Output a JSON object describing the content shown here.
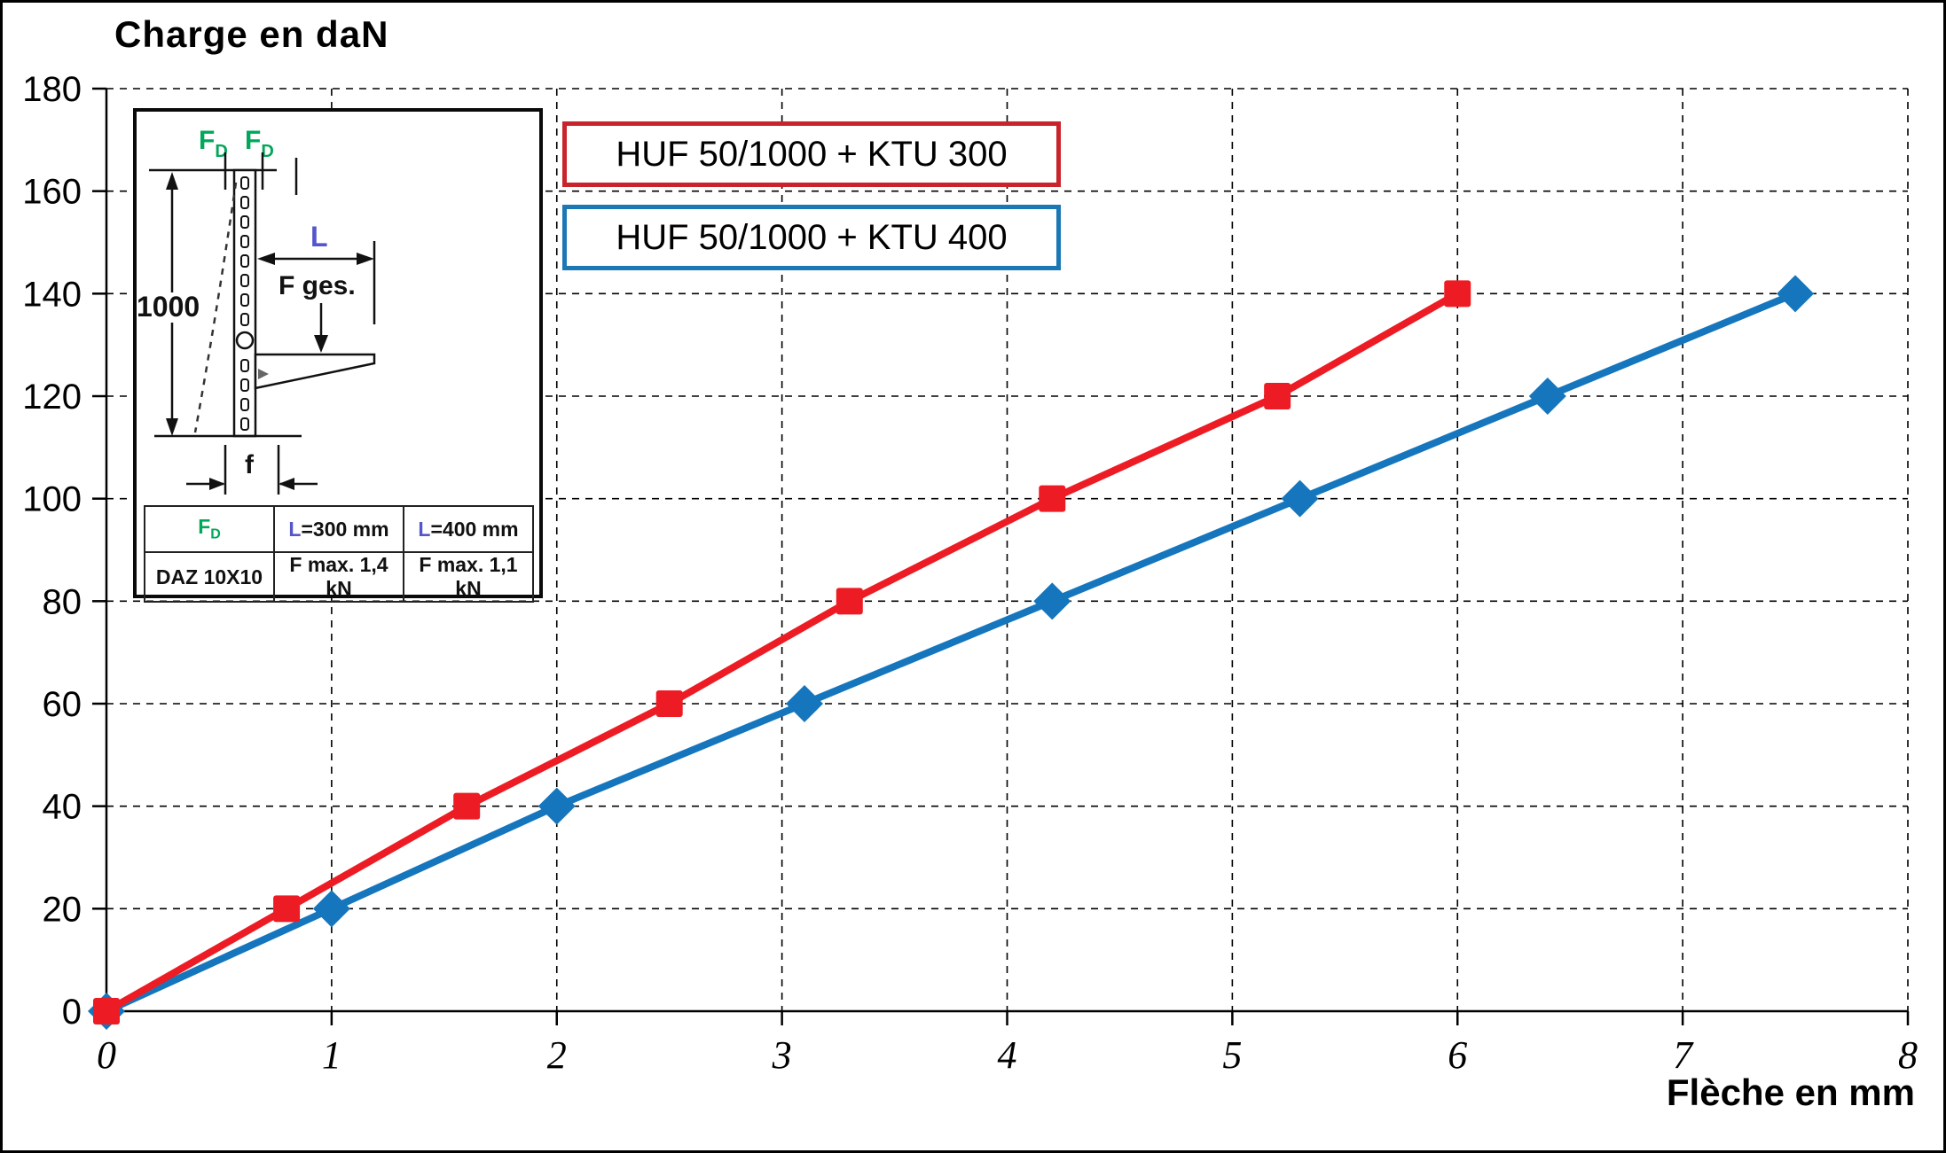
{
  "figure": {
    "title": "Charge en daN",
    "x_axis_title": "Flèche en mm"
  },
  "legend": {
    "items": [
      {
        "label": "HUF 50/1000 + KTU 300",
        "border_color": "#c9242c"
      },
      {
        "label": "HUF 50/1000 + KTU 400",
        "border_color": "#1c77b5"
      }
    ]
  },
  "chart_data": {
    "type": "line",
    "title": "Charge en daN",
    "xlabel": "Flèche en mm",
    "ylabel": "Charge en daN",
    "xlim": [
      0,
      8
    ],
    "ylim": [
      0,
      180
    ],
    "x_ticks": [
      0,
      1,
      2,
      3,
      4,
      5,
      6,
      7,
      8
    ],
    "y_ticks": [
      0,
      20,
      40,
      60,
      80,
      100,
      120,
      140,
      160,
      180
    ],
    "grid": true,
    "grid_style": "dashed",
    "legend_position": "top-center",
    "series": [
      {
        "name": "HUF 50/1000 + KTU 300",
        "color": "#ed1c24",
        "marker": "square",
        "points": [
          [
            0,
            0
          ],
          [
            0.8,
            20
          ],
          [
            1.6,
            40
          ],
          [
            2.5,
            60
          ],
          [
            3.3,
            80
          ],
          [
            4.2,
            100
          ],
          [
            5.2,
            120
          ],
          [
            6,
            140
          ]
        ]
      },
      {
        "name": "HUF 50/1000 + KTU 400",
        "color": "#1576bd",
        "marker": "diamond",
        "points": [
          [
            0,
            0
          ],
          [
            1,
            20
          ],
          [
            2,
            40
          ],
          [
            3.1,
            60
          ],
          [
            4.2,
            80
          ],
          [
            5.3,
            100
          ],
          [
            6.4,
            120
          ],
          [
            7.5,
            140
          ]
        ]
      }
    ]
  },
  "inset": {
    "force_top_1": {
      "main": "F",
      "sub": "D"
    },
    "force_top_2": {
      "main": "F",
      "sub": "D"
    },
    "dim_height": "1000",
    "dim_length": "L",
    "force_total": "F ges.",
    "dim_deflection": "f",
    "table": {
      "header": [
        {
          "main": "F",
          "sub": "D"
        },
        {
          "prefix": "L",
          "rest": "=300 mm"
        },
        {
          "prefix": "L",
          "rest": "=400 mm"
        }
      ],
      "row": [
        "DAZ 10X10",
        "F max. 1,4 kN",
        "F max. 1,1 kN"
      ]
    },
    "colors": {
      "force_green": "#00a859",
      "length_indigo": "#5555cc"
    }
  }
}
